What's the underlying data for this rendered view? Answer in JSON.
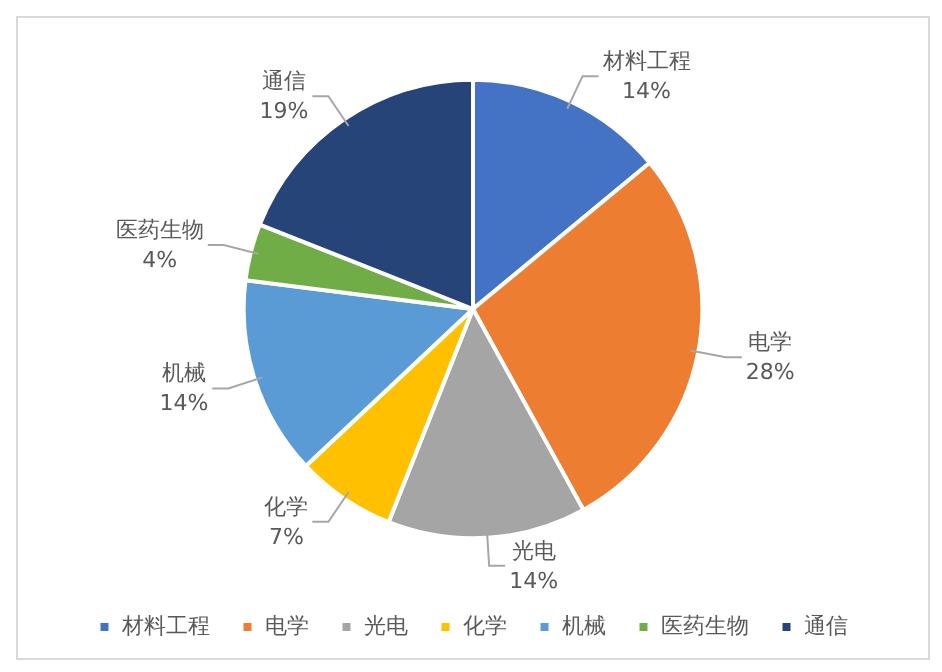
{
  "chart_data": {
    "type": "pie",
    "categories": [
      "材料工程",
      "电学",
      "光电",
      "化学",
      "机械",
      "医药生物",
      "通信"
    ],
    "values": [
      14,
      28,
      14,
      7,
      14,
      4,
      19
    ],
    "value_labels": [
      "14%",
      "28%",
      "14%",
      "7%",
      "14%",
      "4%",
      "19%"
    ],
    "colors": [
      "#4472c4",
      "#ed7d31",
      "#a5a5a5",
      "#ffc000",
      "#5b9bd5",
      "#70ad47",
      "#264478"
    ],
    "legend": "bottom"
  }
}
